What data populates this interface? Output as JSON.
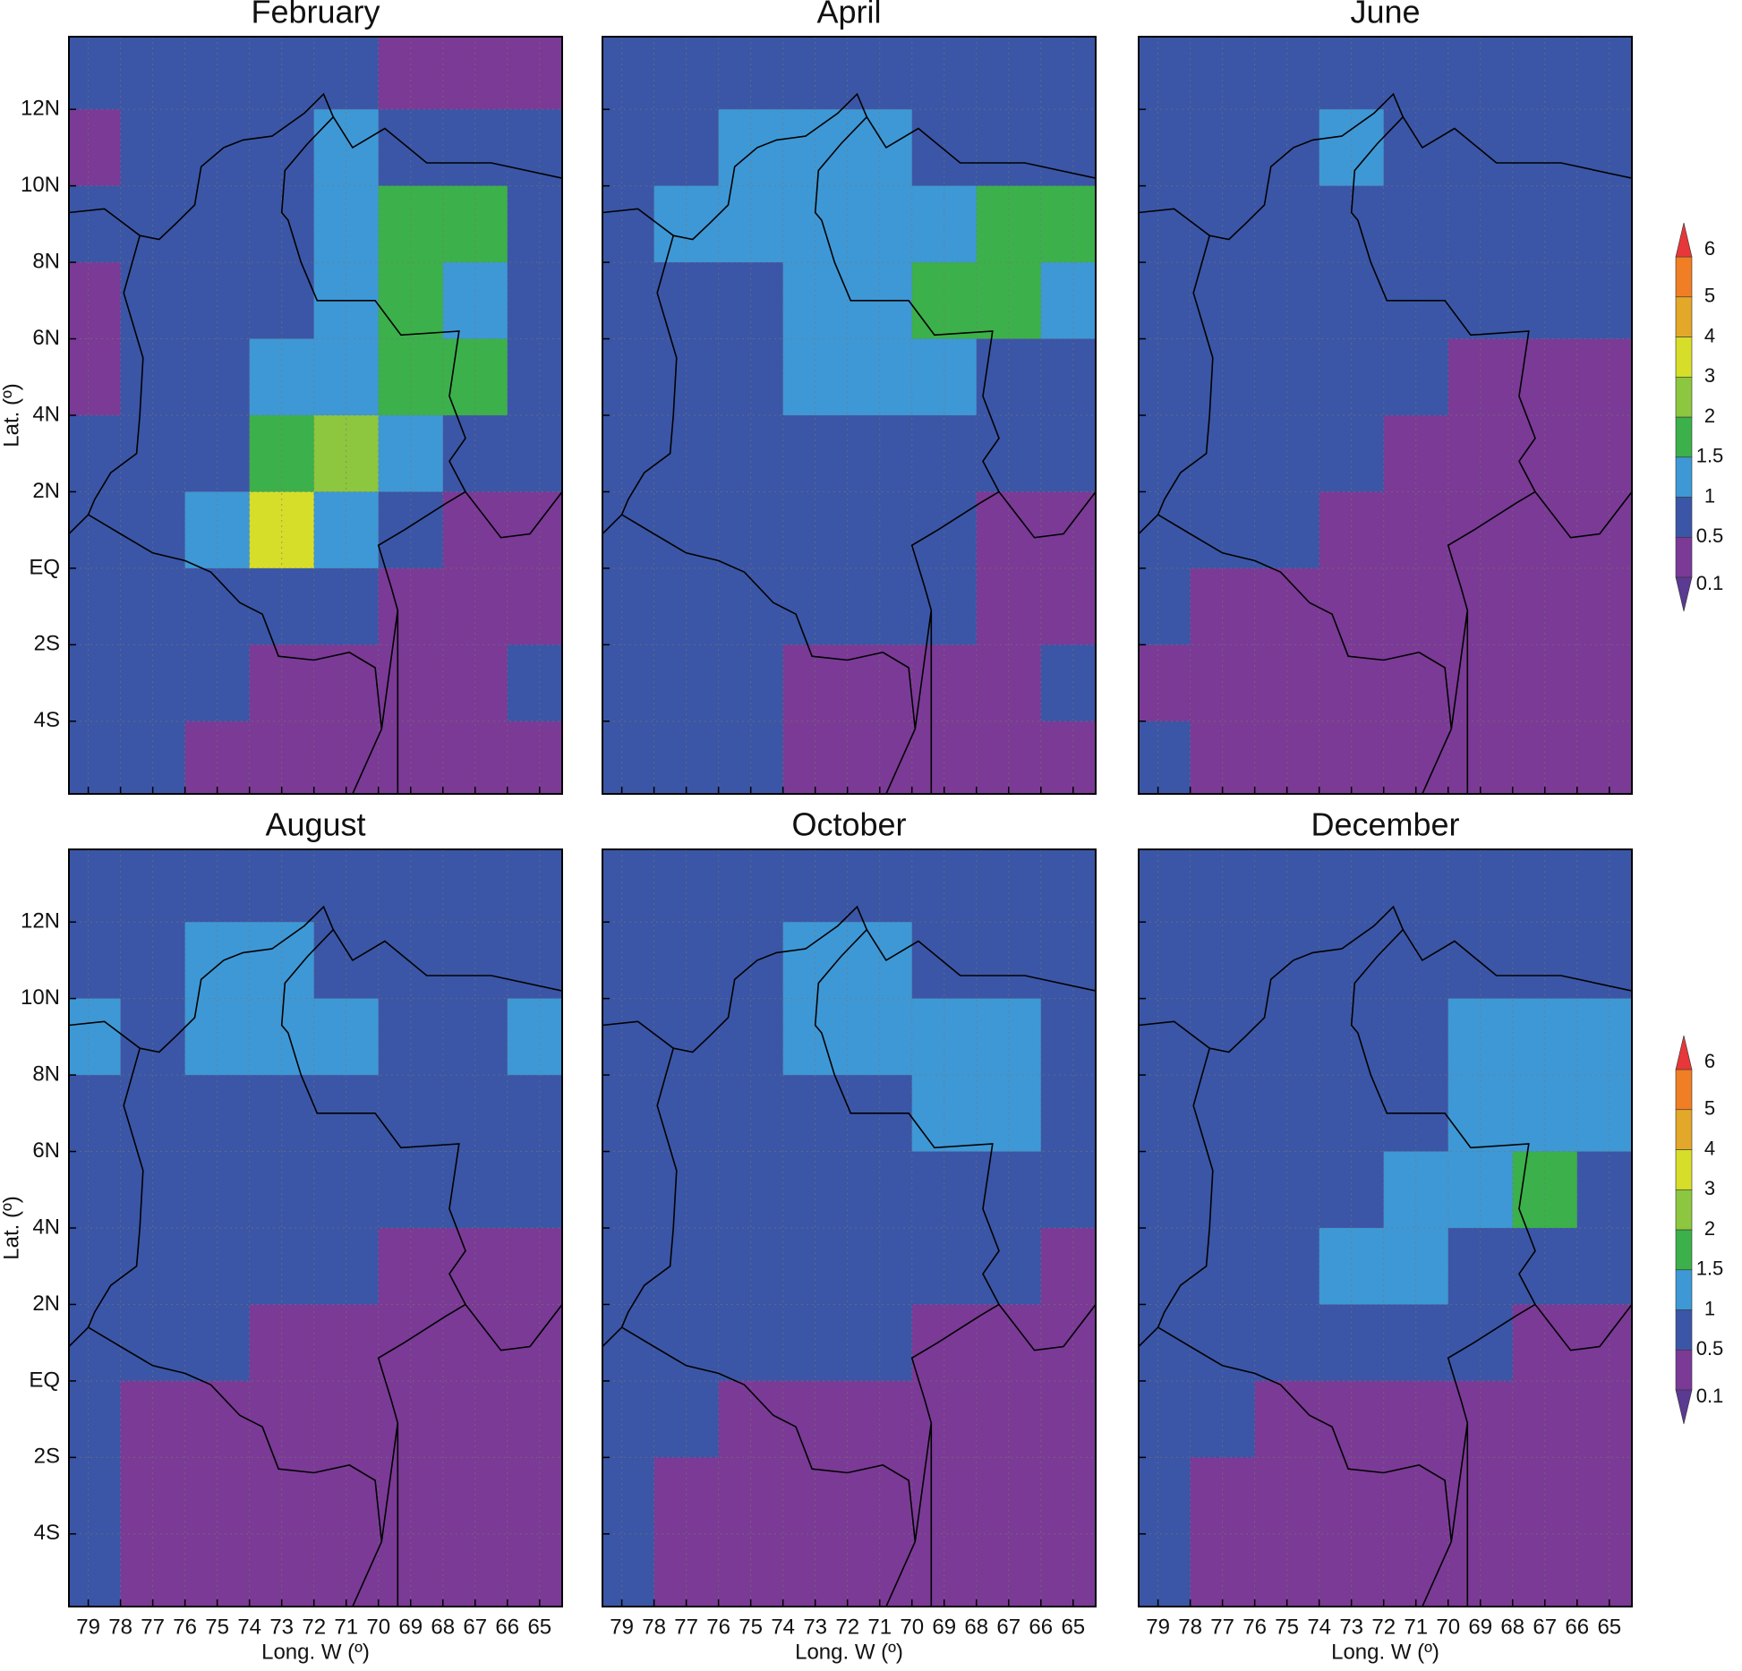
{
  "chart_data": {
    "type": "heatmap",
    "xlabel": "Long. W (º)",
    "ylabel": "Lat. (º)",
    "xlim": [
      -79.6,
      -64.3
    ],
    "ylim": [
      -5.9,
      13.9
    ],
    "grid": true,
    "xticks": [
      {
        "value": -79,
        "label": "79"
      },
      {
        "value": -78,
        "label": "78"
      },
      {
        "value": -77,
        "label": "77"
      },
      {
        "value": -76,
        "label": "76"
      },
      {
        "value": -75,
        "label": "75"
      },
      {
        "value": -74,
        "label": "74"
      },
      {
        "value": -73,
        "label": "73"
      },
      {
        "value": -72,
        "label": "72"
      },
      {
        "value": -71,
        "label": "71"
      },
      {
        "value": -70,
        "label": "70"
      },
      {
        "value": -69,
        "label": "69"
      },
      {
        "value": -68,
        "label": "68"
      },
      {
        "value": -67,
        "label": "67"
      },
      {
        "value": -66,
        "label": "66"
      },
      {
        "value": -65,
        "label": "65"
      }
    ],
    "yticks": [
      {
        "value": 12,
        "label": "12N"
      },
      {
        "value": 10,
        "label": "10N"
      },
      {
        "value": 8,
        "label": "8N"
      },
      {
        "value": 6,
        "label": "6N"
      },
      {
        "value": 4,
        "label": "4N"
      },
      {
        "value": 2,
        "label": "2N"
      },
      {
        "value": 0,
        "label": "EQ"
      },
      {
        "value": -2,
        "label": "2S"
      },
      {
        "value": -4,
        "label": "4S"
      }
    ],
    "x": [
      -79,
      -77,
      -75,
      -73,
      -71,
      -69,
      -67,
      -65
    ],
    "y": [
      13,
      11,
      9,
      7,
      5,
      3,
      1,
      -1,
      -3,
      -5
    ],
    "colorbar": {
      "levels": [
        0.1,
        0.5,
        1,
        1.5,
        2,
        3,
        4,
        5,
        6
      ],
      "colors": [
        "#5a3a92",
        "#7b3a96",
        "#3b56a6",
        "#3e98d5",
        "#3cb04a",
        "#8dc63f",
        "#d7de2a",
        "#e3a82a",
        "#f07e24",
        "#e8373a"
      ]
    },
    "panels": [
      {
        "title": "February",
        "values": [
          [
            0.6,
            0.6,
            0.6,
            0.6,
            0.6,
            0.4,
            0.3,
            0.3
          ],
          [
            0.4,
            0.6,
            0.7,
            0.9,
            1.1,
            0.6,
            0.6,
            0.5
          ],
          [
            0.6,
            0.5,
            0.9,
            0.9,
            1.2,
            1.6,
            1.6,
            0.7
          ],
          [
            0.4,
            0.5,
            0.8,
            0.9,
            1.3,
            1.7,
            1.4,
            0.6
          ],
          [
            0.4,
            0.5,
            0.7,
            1.0,
            1.4,
            1.8,
            1.9,
            0.6
          ],
          [
            0.5,
            0.6,
            0.9,
            1.9,
            2.4,
            1.3,
            0.7,
            0.6
          ],
          [
            0.5,
            0.8,
            1.3,
            3.5,
            1.0,
            0.6,
            0.4,
            0.4
          ],
          [
            0.6,
            0.7,
            0.8,
            0.6,
            0.5,
            0.4,
            0.3,
            0.4
          ],
          [
            0.6,
            0.6,
            0.5,
            0.4,
            0.3,
            0.4,
            0.3,
            0.5
          ],
          [
            0.5,
            0.5,
            0.4,
            0.4,
            0.4,
            0.4,
            0.3,
            0.4
          ]
        ]
      },
      {
        "title": "April",
        "values": [
          [
            0.6,
            0.6,
            0.6,
            0.6,
            0.7,
            0.6,
            0.6,
            0.6
          ],
          [
            0.6,
            0.6,
            1.0,
            1.2,
            1.1,
            0.8,
            0.7,
            0.6
          ],
          [
            0.9,
            1.1,
            1.3,
            1.3,
            1.2,
            1.4,
            1.7,
            1.8
          ],
          [
            0.6,
            0.6,
            0.9,
            1.0,
            1.2,
            1.6,
            1.5,
            1.0
          ],
          [
            0.5,
            0.6,
            0.7,
            1.0,
            1.4,
            1.2,
            0.9,
            0.6
          ],
          [
            0.5,
            0.6,
            0.7,
            0.8,
            0.7,
            0.6,
            0.6,
            0.6
          ],
          [
            0.6,
            0.6,
            0.6,
            0.6,
            0.6,
            0.5,
            0.4,
            0.4
          ],
          [
            0.5,
            0.6,
            0.5,
            0.6,
            0.5,
            0.5,
            0.4,
            0.4
          ],
          [
            0.6,
            0.6,
            0.5,
            0.4,
            0.4,
            0.4,
            0.4,
            0.5
          ],
          [
            0.5,
            0.5,
            0.5,
            0.4,
            0.4,
            0.4,
            0.4,
            0.4
          ]
        ]
      },
      {
        "title": "June",
        "values": [
          [
            0.6,
            0.6,
            0.6,
            0.7,
            0.6,
            0.6,
            0.6,
            0.6
          ],
          [
            0.6,
            0.6,
            0.8,
            1.0,
            0.8,
            0.6,
            0.6,
            0.6
          ],
          [
            0.6,
            0.6,
            0.7,
            0.9,
            0.7,
            0.6,
            0.6,
            0.6
          ],
          [
            0.6,
            0.6,
            0.6,
            0.8,
            0.6,
            0.6,
            0.5,
            0.5
          ],
          [
            0.6,
            0.6,
            0.6,
            0.6,
            0.5,
            0.4,
            0.4,
            0.4
          ],
          [
            0.6,
            0.6,
            0.6,
            0.5,
            0.4,
            0.4,
            0.4,
            0.4
          ],
          [
            0.5,
            0.5,
            0.5,
            0.4,
            0.4,
            0.4,
            0.4,
            0.4
          ],
          [
            0.5,
            0.4,
            0.4,
            0.4,
            0.4,
            0.3,
            0.4,
            0.4
          ],
          [
            0.4,
            0.4,
            0.4,
            0.4,
            0.3,
            0.3,
            0.4,
            0.4
          ],
          [
            0.5,
            0.4,
            0.4,
            0.4,
            0.4,
            0.4,
            0.4,
            0.4
          ]
        ]
      },
      {
        "title": "August",
        "values": [
          [
            0.7,
            0.8,
            0.8,
            0.8,
            0.7,
            0.6,
            0.6,
            0.6
          ],
          [
            0.8,
            0.9,
            1.2,
            1.1,
            0.9,
            0.9,
            0.8,
            0.7
          ],
          [
            1.1,
            0.8,
            1.3,
            1.2,
            1.0,
            0.7,
            0.8,
            1.2
          ],
          [
            0.6,
            0.6,
            0.9,
            0.9,
            0.7,
            0.6,
            0.6,
            0.6
          ],
          [
            0.5,
            0.5,
            0.6,
            0.6,
            0.6,
            0.6,
            0.6,
            0.5
          ],
          [
            0.5,
            0.6,
            0.7,
            0.6,
            0.5,
            0.4,
            0.4,
            0.4
          ],
          [
            0.5,
            0.5,
            0.5,
            0.4,
            0.4,
            0.3,
            0.3,
            0.3
          ],
          [
            0.5,
            0.4,
            0.4,
            0.4,
            0.4,
            0.3,
            0.3,
            0.3
          ],
          [
            0.7,
            0.4,
            0.4,
            0.3,
            0.3,
            0.3,
            0.3,
            0.3
          ],
          [
            0.5,
            0.4,
            0.4,
            0.4,
            0.3,
            0.4,
            0.3,
            0.4
          ]
        ]
      },
      {
        "title": "October",
        "values": [
          [
            0.6,
            0.6,
            0.6,
            0.7,
            0.7,
            0.6,
            0.6,
            0.6
          ],
          [
            0.6,
            0.6,
            0.9,
            1.0,
            1.1,
            0.8,
            0.8,
            0.6
          ],
          [
            0.6,
            0.6,
            0.9,
            1.4,
            1.1,
            1.0,
            1.1,
            0.7
          ],
          [
            0.6,
            0.6,
            0.7,
            0.8,
            0.8,
            1.0,
            1.0,
            0.6
          ],
          [
            0.5,
            0.5,
            0.6,
            0.7,
            0.8,
            0.7,
            0.6,
            0.5
          ],
          [
            0.5,
            0.6,
            0.6,
            0.6,
            0.6,
            0.5,
            0.5,
            0.4
          ],
          [
            0.5,
            0.5,
            0.5,
            0.5,
            0.5,
            0.4,
            0.4,
            0.4
          ],
          [
            0.5,
            0.5,
            0.4,
            0.4,
            0.4,
            0.4,
            0.4,
            0.4
          ],
          [
            0.6,
            0.4,
            0.4,
            0.4,
            0.4,
            0.4,
            0.4,
            0.4
          ],
          [
            0.5,
            0.4,
            0.4,
            0.4,
            0.4,
            0.4,
            0.4,
            0.4
          ]
        ]
      },
      {
        "title": "December",
        "values": [
          [
            0.5,
            0.5,
            0.5,
            0.6,
            0.6,
            0.6,
            0.6,
            0.6
          ],
          [
            0.5,
            0.6,
            0.7,
            0.8,
            0.9,
            0.6,
            0.6,
            0.6
          ],
          [
            0.5,
            0.6,
            0.6,
            0.8,
            0.9,
            1.1,
            1.4,
            1.3
          ],
          [
            0.5,
            0.5,
            0.6,
            0.7,
            0.9,
            1.1,
            1.3,
            1.0
          ],
          [
            0.5,
            0.5,
            0.6,
            0.8,
            1.1,
            1.2,
            1.5,
            0.8
          ],
          [
            0.5,
            0.6,
            0.8,
            1.1,
            1.0,
            0.7,
            0.6,
            0.6
          ],
          [
            0.5,
            0.5,
            0.5,
            0.6,
            0.5,
            0.5,
            0.4,
            0.4
          ],
          [
            0.6,
            0.5,
            0.4,
            0.4,
            0.4,
            0.4,
            0.4,
            0.4
          ],
          [
            0.9,
            0.4,
            0.4,
            0.4,
            0.4,
            0.4,
            0.4,
            0.4
          ],
          [
            0.5,
            0.4,
            0.4,
            0.4,
            0.4,
            0.4,
            0.4,
            0.4
          ]
        ]
      }
    ]
  }
}
